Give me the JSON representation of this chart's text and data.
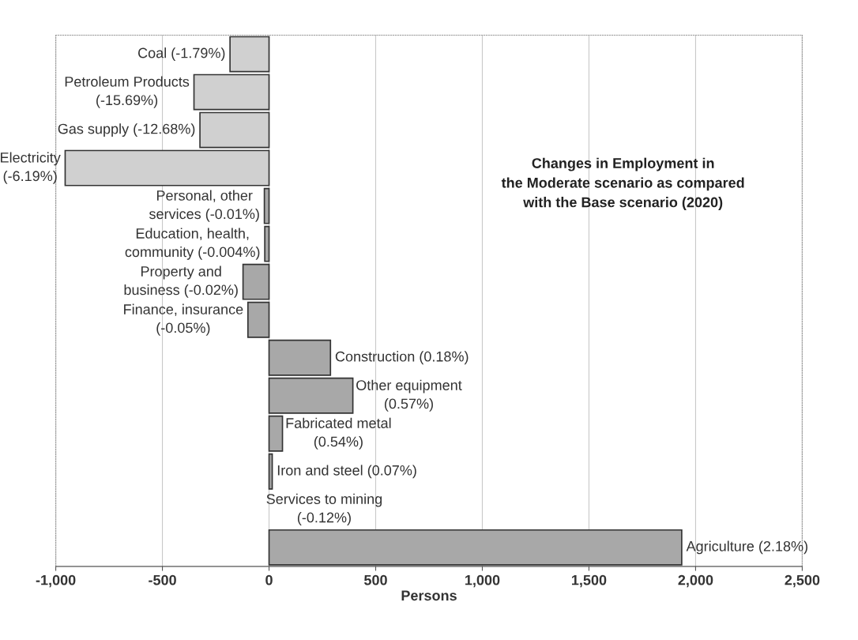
{
  "chart_data": {
    "type": "bar",
    "orientation": "horizontal",
    "title": "Changes in Employment in\nthe Moderate scenario as compared\nwith the Base scenario (2020)",
    "xlabel": "Persons",
    "categories": [
      "Coal (-1.79%)",
      "Petroleum Products\n(-15.69%)",
      "Gas supply (-12.68%)",
      "Electricity\n(-6.19%)",
      "Personal, other\nservices (-0.01%)",
      "Education, health,\ncommunity (-0.004%)",
      "Property and\nbusiness (-0.02%)",
      "Finance, insurance\n(-0.05%)",
      "Construction (0.18%)",
      "Other equipment\n(0.57%)",
      "Fabricated metal\n(0.54%)",
      "Iron and steel (0.07%)",
      "Services to mining\n(-0.12%)",
      "Agriculture (2.18%)"
    ],
    "values": [
      -183,
      -352,
      -324,
      -956,
      -22,
      -20,
      -122,
      -99,
      288,
      393,
      63,
      15,
      null,
      1935
    ],
    "colors": [
      "#d0d0d0",
      "#d0d0d0",
      "#d0d0d0",
      "#d0d0d0",
      "#a8a8a8",
      "#a8a8a8",
      "#a8a8a8",
      "#a8a8a8",
      "#a8a8a8",
      "#a8a8a8",
      "#a8a8a8",
      "#a8a8a8",
      "#a8a8a8",
      "#a8a8a8"
    ],
    "xlim": [
      -1000,
      2500
    ],
    "xticks": [
      {
        "value": -1000,
        "label": "-1,000"
      },
      -500,
      0,
      500,
      {
        "value": 1000,
        "label": "1,000"
      },
      {
        "value": 1500,
        "label": "1,500"
      },
      {
        "value": 2000,
        "label": "2,000"
      },
      {
        "value": 2500,
        "label": "2,500"
      }
    ],
    "grid": "x"
  }
}
